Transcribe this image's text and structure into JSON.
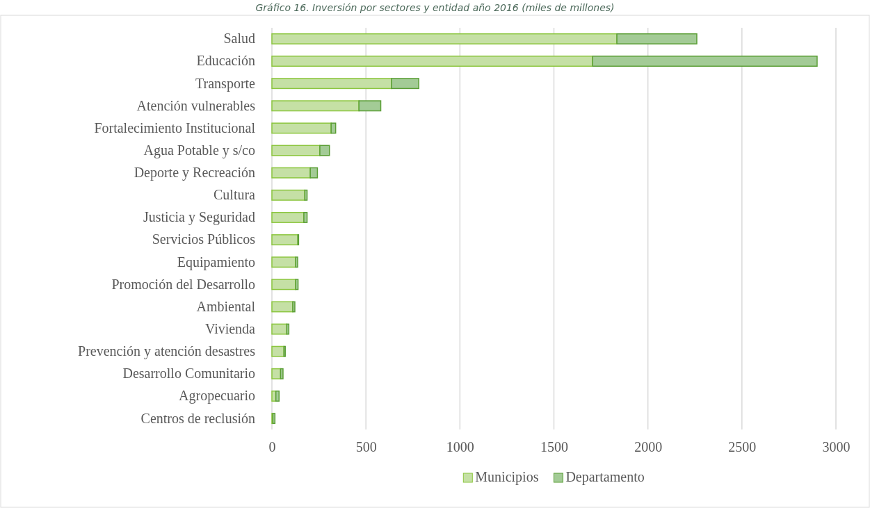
{
  "chart_data": {
    "type": "bar",
    "orientation": "horizontal",
    "stacked": true,
    "title": "Gráfico 16. Inversión por sectores y entidad año 2016 (miles de millones)",
    "categories": [
      "Salud",
      "Educación",
      "Transporte",
      "Atención vulnerables",
      "Fortalecimiento Institucional",
      "Agua Potable y s/co",
      "Deporte y Recreación",
      "Cultura",
      "Justicia y Seguridad",
      "Servicios Públicos",
      "Equipamiento",
      "Promoción del Desarrollo",
      "Ambiental",
      "Vivienda",
      "Prevención y atención desastres",
      "Desarrollo Comunitario",
      "Agropecuario",
      "Centros de reclusión"
    ],
    "series": [
      {
        "name": "Municipios",
        "color": "#c5e0a5",
        "values": [
          1835,
          1706,
          636,
          463,
          315,
          255,
          204,
          175,
          170,
          138,
          126,
          126,
          111,
          79,
          64,
          46,
          21,
          5
        ]
      },
      {
        "name": "Departamento",
        "color": "#a3cb96",
        "values": [
          425,
          1194,
          145,
          116,
          24,
          51,
          38,
          12,
          17,
          4,
          11,
          13,
          11,
          11,
          7,
          13,
          17,
          11
        ]
      }
    ],
    "xlim": [
      0,
      3000
    ],
    "xticks": [
      0,
      500,
      1000,
      1500,
      2000,
      2500,
      3000
    ],
    "grid": "x",
    "legend": "bottom"
  }
}
